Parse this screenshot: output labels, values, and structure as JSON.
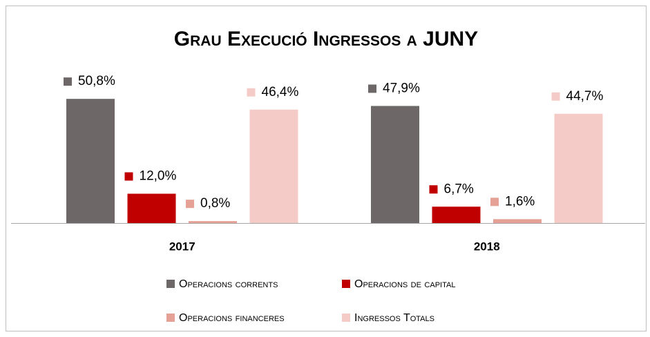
{
  "chart_data": {
    "type": "bar",
    "title": "Grau Execució Ingressos a JUNY",
    "categories": [
      "2017",
      "2018"
    ],
    "series": [
      {
        "name": "Operacions corrents",
        "color": "#6d6867",
        "values": [
          50.8,
          47.9
        ],
        "value_labels": [
          "50,8%",
          "47,9%"
        ]
      },
      {
        "name": "Operacions de capital",
        "color": "#c00000",
        "values": [
          12.0,
          6.7
        ],
        "value_labels": [
          "12,0%",
          "6,7%"
        ]
      },
      {
        "name": "Operacions financeres",
        "color": "#e6a197",
        "values": [
          0.8,
          1.6
        ],
        "value_labels": [
          "0,8%",
          "1,6%"
        ]
      },
      {
        "name": "Ingressos Totals",
        "color": "#f4cbc6",
        "values": [
          46.4,
          44.7
        ],
        "value_labels": [
          "46,4%",
          "44,7%"
        ]
      }
    ]
  }
}
